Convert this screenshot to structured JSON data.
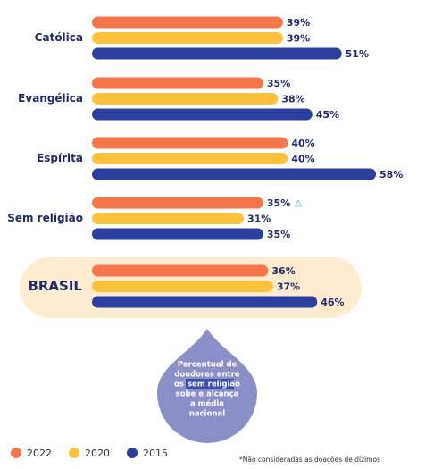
{
  "chart_data": {
    "type": "bar",
    "orientation": "horizontal",
    "categories": [
      "Católica",
      "Evangélica",
      "Espírita",
      "Sem religião",
      "BRASIL"
    ],
    "series": [
      {
        "name": "2022",
        "color": "#f4764a",
        "values": [
          39,
          35,
          40,
          35,
          36
        ],
        "value_labels": [
          "39%",
          "35%",
          "40%",
          "35%",
          "36%"
        ]
      },
      {
        "name": "2020",
        "color": "#fcc23e",
        "values": [
          39,
          38,
          40,
          31,
          37
        ],
        "value_labels": [
          "39%",
          "38%",
          "40%",
          "31%",
          "37%"
        ]
      },
      {
        "name": "2015",
        "color": "#2c3e9e",
        "values": [
          51,
          45,
          58,
          35,
          46
        ],
        "value_labels": [
          "51%",
          "45%",
          "58%",
          "35%",
          "46%"
        ]
      }
    ],
    "xlim": [
      0,
      60
    ],
    "annotation": "△",
    "callout": [
      "Percentual de",
      "doadores entre",
      "os",
      "sem religião",
      "sobe e alcança",
      "a média",
      "nacional"
    ],
    "footnote": "*Não consideradas as doações de dízimos",
    "legend": "bottom"
  }
}
